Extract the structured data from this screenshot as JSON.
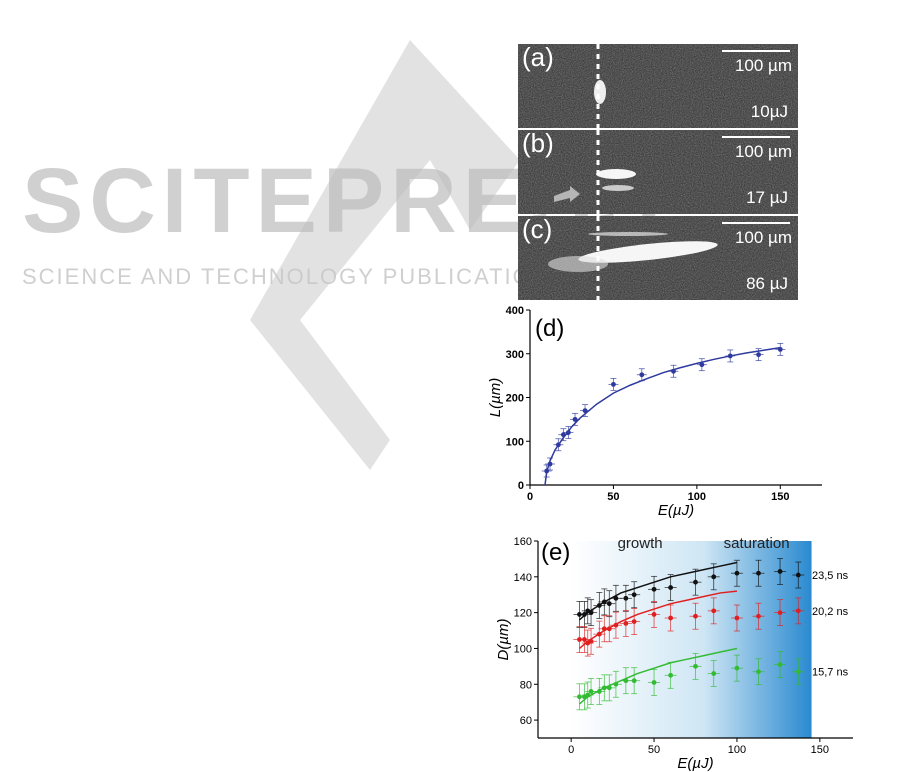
{
  "watermark": {
    "big": "SCITEPRESS",
    "small": "SCIENCE AND TECHNOLOGY PUBLICATIONS"
  },
  "panels": [
    {
      "label": "(a)",
      "scale": "100 µm",
      "energy": "10µJ"
    },
    {
      "label": "(b)",
      "scale": "100 µm",
      "energy": "17 µJ"
    },
    {
      "label": "(c)",
      "scale": "100 µm",
      "energy": "86 µJ"
    }
  ],
  "colors": {
    "series_d": "#2e3a9e",
    "black": "#111111",
    "red": "#e02020",
    "green": "#33bb33",
    "gradient_end": "#2a8ad0"
  },
  "chart_data": [
    {
      "type": "scatter",
      "label": "(d)",
      "xlabel": "E(µJ)",
      "ylabel": "L(µm)",
      "xlim": [
        0,
        175
      ],
      "ylim": [
        0,
        400
      ],
      "xticks": [
        0,
        50,
        100,
        150
      ],
      "yticks": [
        0,
        100,
        200,
        300,
        400
      ],
      "series": [
        {
          "x": [
            10,
            12,
            17,
            20,
            23,
            27,
            33,
            50,
            67,
            86,
            103,
            120,
            137,
            150
          ],
          "y": [
            32,
            48,
            92,
            115,
            120,
            150,
            170,
            230,
            252,
            260,
            275,
            295,
            298,
            310
          ],
          "fit": [
            [
              9,
              0
            ],
            [
              10,
              30
            ],
            [
              12,
              55
            ],
            [
              15,
              80
            ],
            [
              20,
              108
            ],
            [
              25,
              133
            ],
            [
              30,
              153
            ],
            [
              40,
              185
            ],
            [
              50,
              210
            ],
            [
              60,
              228
            ],
            [
              70,
              243
            ],
            [
              80,
              257
            ],
            [
              90,
              268
            ],
            [
              100,
              278
            ],
            [
              110,
              287
            ],
            [
              120,
              295
            ],
            [
              130,
              302
            ],
            [
              140,
              308
            ],
            [
              150,
              314
            ]
          ]
        }
      ]
    },
    {
      "type": "scatter",
      "label": "(e)",
      "xlabel": "E(µJ)",
      "ylabel": "D(µm)",
      "xlim": [
        -20,
        170
      ],
      "ylim": [
        50,
        160
      ],
      "xticks": [
        0,
        50,
        100,
        150
      ],
      "yticks": [
        60,
        80,
        100,
        120,
        140,
        160
      ],
      "annotations": [
        "growth",
        "saturation"
      ],
      "series": [
        {
          "name": "23,5 ns",
          "x": [
            5,
            8,
            10,
            12,
            17,
            20,
            23,
            27,
            33,
            38,
            50,
            60,
            75,
            86,
            100,
            113,
            126,
            137
          ],
          "y": [
            119,
            119,
            121,
            120,
            124,
            126,
            125,
            128,
            128,
            130,
            133,
            134,
            137,
            140,
            142,
            142,
            143,
            141
          ],
          "fit": [
            [
              5,
              116
            ],
            [
              10,
              120
            ],
            [
              20,
              126
            ],
            [
              30,
              131
            ],
            [
              40,
              134
            ],
            [
              50,
              137
            ],
            [
              60,
              140
            ],
            [
              70,
              142
            ],
            [
              80,
              144
            ],
            [
              90,
              146
            ],
            [
              100,
              148
            ]
          ]
        },
        {
          "name": "20,2 ns",
          "x": [
            5,
            8,
            10,
            12,
            17,
            20,
            23,
            27,
            33,
            38,
            50,
            60,
            75,
            86,
            100,
            113,
            126,
            137
          ],
          "y": [
            105,
            105,
            103,
            104,
            108,
            111,
            111,
            113,
            114,
            115,
            119,
            117,
            118,
            121,
            117,
            118,
            120,
            121
          ],
          "fit": [
            [
              5,
              100
            ],
            [
              10,
              104
            ],
            [
              20,
              110
            ],
            [
              30,
              115
            ],
            [
              40,
              119
            ],
            [
              50,
              122
            ],
            [
              60,
              125
            ],
            [
              70,
              127
            ],
            [
              80,
              129
            ],
            [
              90,
              131
            ],
            [
              100,
              132
            ]
          ]
        },
        {
          "name": "15,7 ns",
          "x": [
            5,
            8,
            10,
            12,
            17,
            20,
            23,
            27,
            33,
            38,
            50,
            60,
            75,
            86,
            100,
            113,
            126,
            137
          ],
          "y": [
            73,
            73,
            74,
            76,
            76,
            78,
            78,
            80,
            82,
            82,
            81,
            85,
            90,
            86,
            89,
            87,
            91,
            87
          ],
          "fit": [
            [
              5,
              69
            ],
            [
              10,
              73
            ],
            [
              20,
              78
            ],
            [
              30,
              82
            ],
            [
              40,
              86
            ],
            [
              50,
              89
            ],
            [
              60,
              92
            ],
            [
              70,
              94
            ],
            [
              80,
              96
            ],
            [
              90,
              98
            ],
            [
              100,
              100
            ]
          ]
        }
      ]
    }
  ]
}
